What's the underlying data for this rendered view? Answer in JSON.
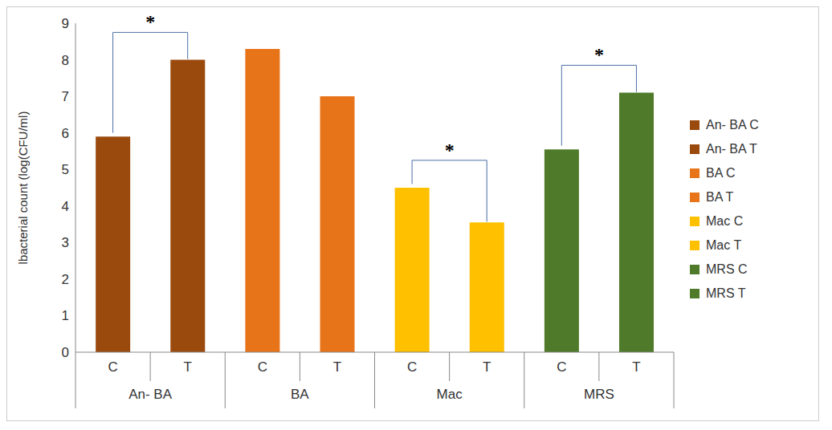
{
  "chart_data": {
    "type": "bar",
    "y_label": "lbacterial count  (log(CFU/ml)",
    "categories": [
      "C",
      "T",
      "C",
      "T",
      "C",
      "T",
      "C",
      "T"
    ],
    "group_labels": [
      "An- BA",
      "BA",
      "Mac",
      "MRS"
    ],
    "series": [
      {
        "name": "An- BA C",
        "color": "#9b4a0e",
        "values": [
          5.9,
          null,
          null,
          null,
          null,
          null,
          null,
          null
        ]
      },
      {
        "name": "An- BA T",
        "color": "#9b4a0e",
        "values": [
          null,
          8.0,
          null,
          null,
          null,
          null,
          null,
          null
        ]
      },
      {
        "name": "BA C",
        "color": "#e8741a",
        "values": [
          null,
          null,
          8.3,
          null,
          null,
          null,
          null,
          null
        ]
      },
      {
        "name": "BA T",
        "color": "#e8741a",
        "values": [
          null,
          null,
          null,
          7.0,
          null,
          null,
          null,
          null
        ]
      },
      {
        "name": "Mac C",
        "color": "#ffc000",
        "values": [
          null,
          null,
          null,
          null,
          4.5,
          null,
          null,
          null
        ]
      },
      {
        "name": "Mac T",
        "color": "#ffc000",
        "values": [
          null,
          null,
          null,
          null,
          null,
          3.55,
          null,
          null
        ]
      },
      {
        "name": "MRS C",
        "color": "#4e7a29",
        "values": [
          null,
          null,
          null,
          null,
          null,
          null,
          5.55,
          null
        ]
      },
      {
        "name": "MRS T",
        "color": "#4e7a29",
        "values": [
          null,
          null,
          null,
          null,
          null,
          null,
          null,
          7.1
        ]
      }
    ],
    "ylim": [
      0,
      9
    ],
    "yticks": [
      0,
      1,
      2,
      3,
      4,
      5,
      6,
      7,
      8,
      9
    ],
    "grid": false,
    "legend": "right",
    "annotations": [
      {
        "text": "*",
        "from": 0,
        "to": 1
      },
      {
        "text": "*",
        "from": 4,
        "to": 5
      },
      {
        "text": "*",
        "from": 6,
        "to": 7
      }
    ]
  }
}
